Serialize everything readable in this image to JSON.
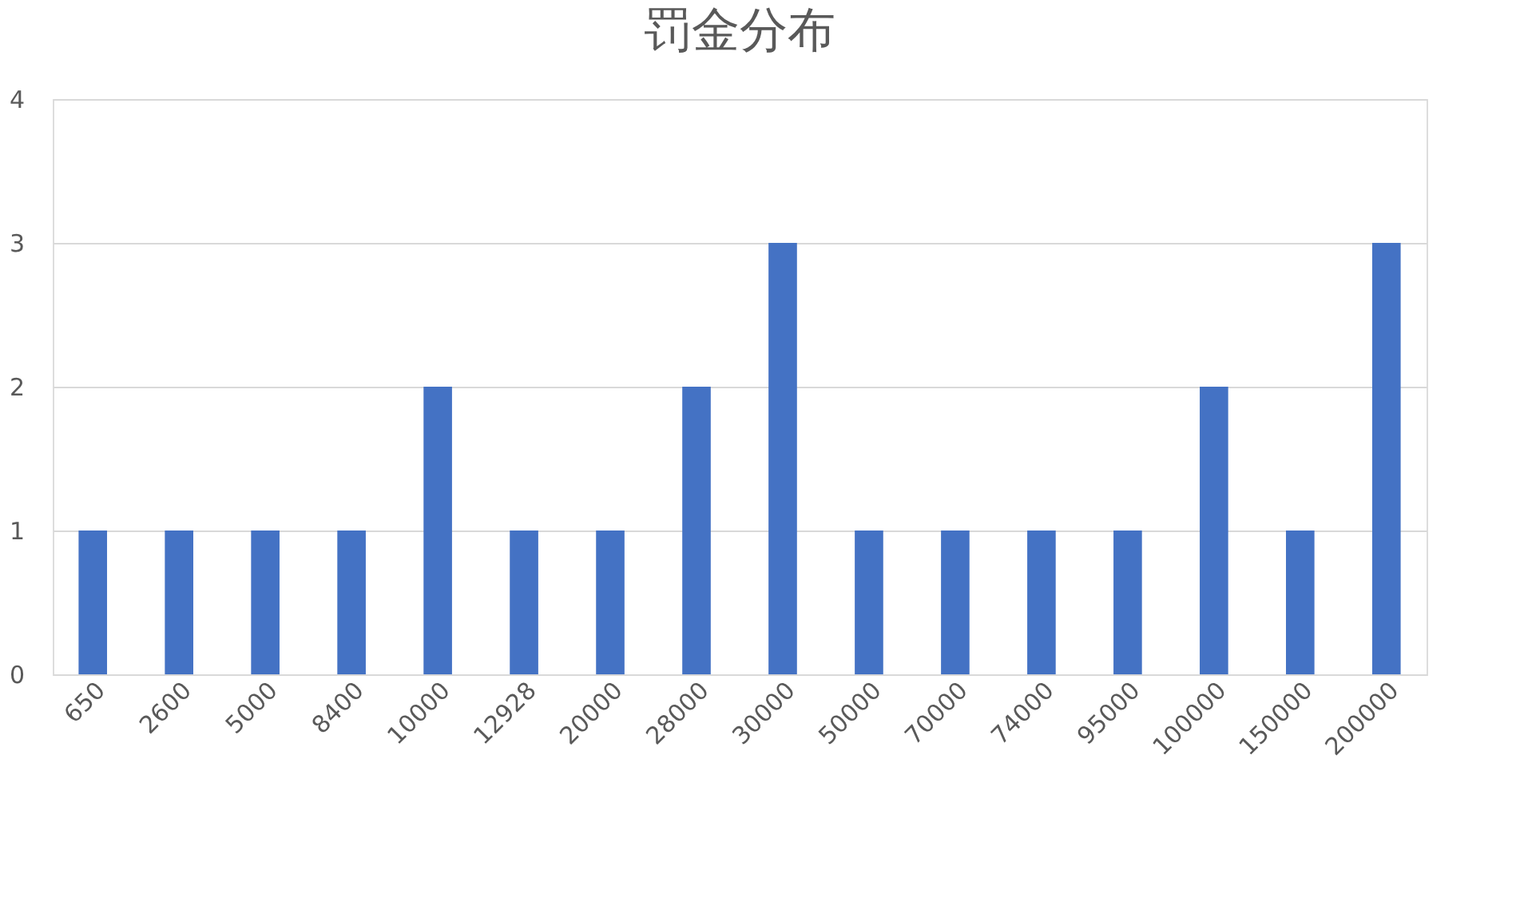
{
  "chart_data": {
    "type": "bar",
    "title": "罚金分布",
    "categories": [
      "650",
      "2600",
      "5000",
      "8400",
      "10000",
      "12928",
      "20000",
      "28000",
      "30000",
      "50000",
      "70000",
      "74000",
      "95000",
      "100000",
      "150000",
      "200000"
    ],
    "values": [
      1,
      1,
      1,
      1,
      2,
      1,
      1,
      2,
      3,
      1,
      1,
      1,
      1,
      2,
      1,
      3
    ],
    "color": "#4472c4",
    "ylim": [
      0,
      4
    ],
    "yticks": [
      0,
      1,
      2,
      3,
      4
    ],
    "grid": "y"
  }
}
